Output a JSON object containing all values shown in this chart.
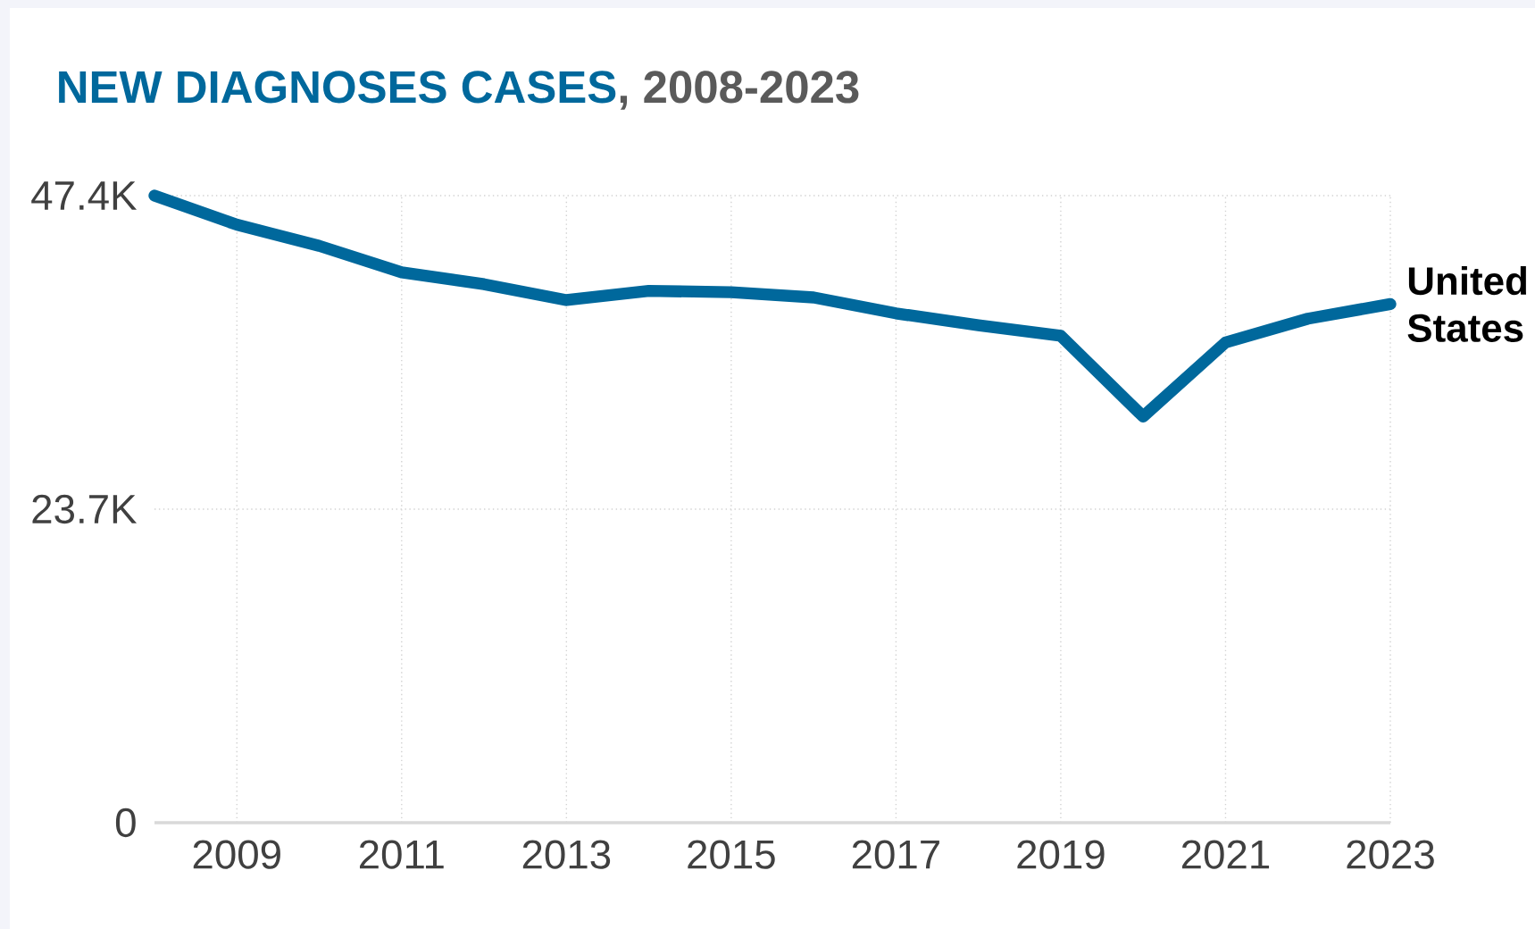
{
  "chart_data": {
    "type": "line",
    "title": "NEW DIAGNOSES CASES",
    "subtitle": ", 2008-2023",
    "x": [
      2008,
      2009,
      2010,
      2011,
      2012,
      2013,
      2014,
      2015,
      2016,
      2017,
      2018,
      2019,
      2020,
      2021,
      2022,
      2023
    ],
    "series": [
      {
        "name": "United States",
        "color": "#00689c",
        "values": [
          47400,
          45200,
          43600,
          41600,
          40700,
          39500,
          40200,
          40100,
          39700,
          38500,
          37600,
          36800,
          30700,
          36300,
          38100,
          39200
        ]
      }
    ],
    "xlim": [
      2008,
      2023
    ],
    "xticks": [
      2009,
      2011,
      2013,
      2015,
      2017,
      2019,
      2021,
      2023
    ],
    "ylim": [
      0,
      47400
    ],
    "yticks": [
      {
        "value": 0,
        "label": "0"
      },
      {
        "value": 23700,
        "label": "23.7K"
      },
      {
        "value": 47400,
        "label": "47.4K"
      }
    ],
    "grid": true,
    "line_style": "solid",
    "marker": "none",
    "legend": false
  }
}
